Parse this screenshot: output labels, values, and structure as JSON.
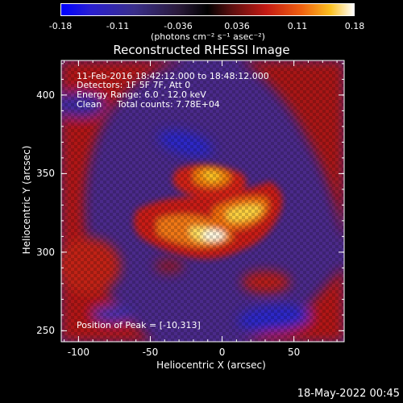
{
  "chart_data": {
    "type": "heatmap",
    "title": "Reconstructed RHESSI Image",
    "colorbar": {
      "ticks": [
        "-0.18",
        "-0.11",
        "-0.036",
        "0.036",
        "0.11",
        "0.18"
      ],
      "range": [
        -0.18,
        0.18
      ],
      "unit_label": "(photons cm⁻² s⁻¹ asec⁻²)"
    },
    "xlabel": "Heliocentric X (arcsec)",
    "ylabel": "Heliocentric Y (arcsec)",
    "xlim": [
      -112,
      85
    ],
    "ylim": [
      243,
      422
    ],
    "xticks": [
      "-100",
      "-50",
      "0",
      "50"
    ],
    "yticks": [
      "250",
      "300",
      "350",
      "400"
    ],
    "annotations": {
      "line1": "11-Feb-2016 18:42:12.000 to 18:48:12.000",
      "line2": "Detectors: 1F 5F 7F, Att 0",
      "line3": "Energy Range: 6.0 - 12.0 keV",
      "line4_a": "Clean",
      "line4_b": "Total counts: 7.78E+04",
      "peak": "Position of Peak = [-10,313]"
    },
    "peak_position": [
      -10,
      313
    ],
    "timestamp": "18-May-2022 00:45"
  }
}
